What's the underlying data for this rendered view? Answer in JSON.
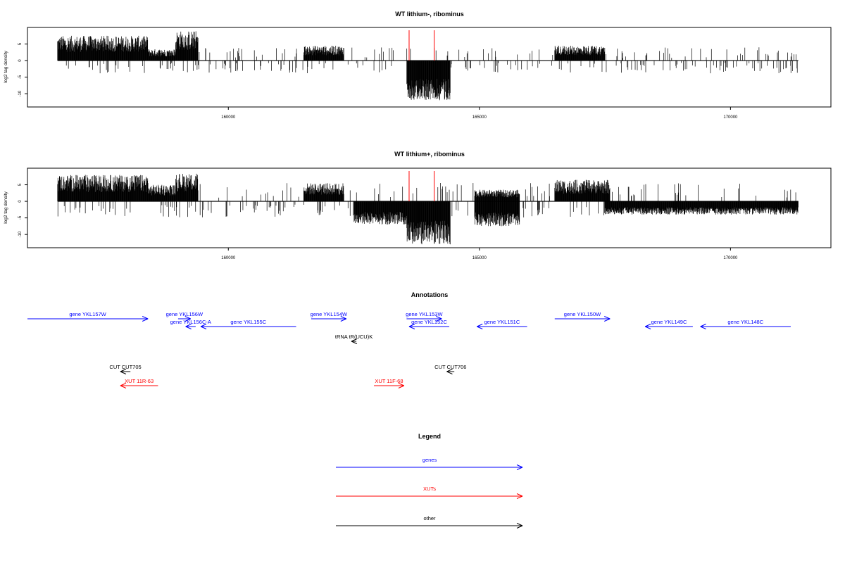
{
  "colors": {
    "genes": "#0000ff",
    "xuts": "#ff0000",
    "other": "#000000",
    "marker": "#ff0000",
    "axis": "#000000"
  },
  "chart_data": [
    {
      "type": "bar",
      "title": "WT lithium-, ribominus",
      "ylabel": "log2 tag density",
      "xlim": [
        156000,
        172000
      ],
      "ylim": [
        -14,
        10
      ],
      "x_ticks": [
        {
          "value": 160000,
          "label": "160000"
        },
        {
          "value": 165000,
          "label": "165000"
        },
        {
          "value": 170000,
          "label": "170000"
        }
      ],
      "y_ticks": [
        {
          "value": 5,
          "label": "5"
        },
        {
          "value": 0,
          "label": "0"
        },
        {
          "value": -5,
          "label": "-5"
        },
        {
          "value": -10,
          "label": "-10"
        }
      ],
      "data_range": [
        156600,
        171350
      ],
      "markers": [
        163600,
        164100
      ],
      "positive_blocks": [
        {
          "start": 156600,
          "end": 158400,
          "height": 7.5
        },
        {
          "start": 158400,
          "end": 158950,
          "height": 3.5
        },
        {
          "start": 158950,
          "end": 159400,
          "height": 9
        },
        {
          "start": 161500,
          "end": 162300,
          "height": 4.5
        },
        {
          "start": 166500,
          "end": 167500,
          "height": 4.5
        }
      ],
      "negative_blocks": [
        {
          "start": 163550,
          "end": 164420,
          "depth": -12
        }
      ],
      "sparse_pos_level": 2.5,
      "sparse_neg_level": -3.5
    },
    {
      "type": "bar",
      "title": "WT lithium+, ribominus",
      "ylabel": "log2 tag density",
      "xlim": [
        156000,
        172000
      ],
      "ylim": [
        -14,
        10
      ],
      "x_ticks": [
        {
          "value": 160000,
          "label": "160000"
        },
        {
          "value": 165000,
          "label": "165000"
        },
        {
          "value": 170000,
          "label": "170000"
        }
      ],
      "y_ticks": [
        {
          "value": 5,
          "label": "5"
        },
        {
          "value": 0,
          "label": "0"
        },
        {
          "value": -5,
          "label": "-5"
        },
        {
          "value": -10,
          "label": "-10"
        }
      ],
      "data_range": [
        156600,
        171350
      ],
      "markers": [
        163600,
        164100
      ],
      "positive_blocks": [
        {
          "start": 156600,
          "end": 158400,
          "height": 8
        },
        {
          "start": 158400,
          "end": 158950,
          "height": 5
        },
        {
          "start": 158950,
          "end": 159400,
          "height": 8.5
        },
        {
          "start": 161500,
          "end": 162300,
          "height": 5.5
        },
        {
          "start": 164900,
          "end": 165800,
          "height": 3.5
        },
        {
          "start": 166500,
          "end": 167600,
          "height": 6.5
        }
      ],
      "negative_blocks": [
        {
          "start": 162500,
          "end": 163550,
          "depth": -7
        },
        {
          "start": 163550,
          "end": 164420,
          "depth": -13
        },
        {
          "start": 164900,
          "end": 165800,
          "depth": -7.5
        },
        {
          "start": 167500,
          "end": 171350,
          "depth": -4
        }
      ],
      "sparse_pos_level": 3.5,
      "sparse_neg_level": -4.5
    }
  ],
  "annotations": {
    "title": "Annotations",
    "genes": [
      {
        "label": "gene YKL157W",
        "start": 156000,
        "end": 158400,
        "dir": "right",
        "row": 0
      },
      {
        "label": "gene YKL156W",
        "start": 159000,
        "end": 159250,
        "dir": "right",
        "row": 0
      },
      {
        "label": "gene YKL156C-A",
        "start": 159350,
        "end": 159150,
        "dir": "left",
        "row": 1
      },
      {
        "label": "gene YKL155C",
        "start": 161350,
        "end": 159450,
        "dir": "left",
        "row": 1
      },
      {
        "label": "gene YKL154W",
        "start": 161650,
        "end": 162350,
        "dir": "right",
        "row": 0
      },
      {
        "label": "gene YKL153W",
        "start": 163550,
        "end": 164250,
        "dir": "right",
        "row": 0
      },
      {
        "label": "gene YKL152C",
        "start": 164400,
        "end": 163600,
        "dir": "left",
        "row": 1
      },
      {
        "label": "gene YKL151C",
        "start": 165950,
        "end": 164950,
        "dir": "left",
        "row": 1
      },
      {
        "label": "gene YKL150W",
        "start": 166500,
        "end": 167600,
        "dir": "right",
        "row": 0
      },
      {
        "label": "gene YKL149C",
        "start": 169250,
        "end": 168300,
        "dir": "left",
        "row": 1
      },
      {
        "label": "gene YKL148C",
        "start": 171200,
        "end": 169400,
        "dir": "left",
        "row": 1
      }
    ],
    "other": [
      {
        "label": "tRNA tR(UCU)K",
        "start": 162550,
        "end": 162450,
        "dir": "left",
        "row": 2
      },
      {
        "label": "CUT CUT705",
        "start": 158050,
        "end": 157850,
        "dir": "left",
        "row": 3
      },
      {
        "label": "CUT CUT706",
        "start": 164500,
        "end": 164350,
        "dir": "left",
        "row": 3
      }
    ],
    "xuts": [
      {
        "label": "XUT 11R-63",
        "start": 158600,
        "end": 157850,
        "dir": "left",
        "row": 4
      },
      {
        "label": "XUT 11F-68",
        "start": 162900,
        "end": 163500,
        "dir": "right",
        "row": 4
      }
    ]
  },
  "legend": {
    "title": "Legend",
    "items": [
      {
        "label": "genes",
        "color": "#0000ff"
      },
      {
        "label": "XUTs",
        "color": "#ff0000"
      },
      {
        "label": "other",
        "color": "#000000"
      }
    ]
  }
}
